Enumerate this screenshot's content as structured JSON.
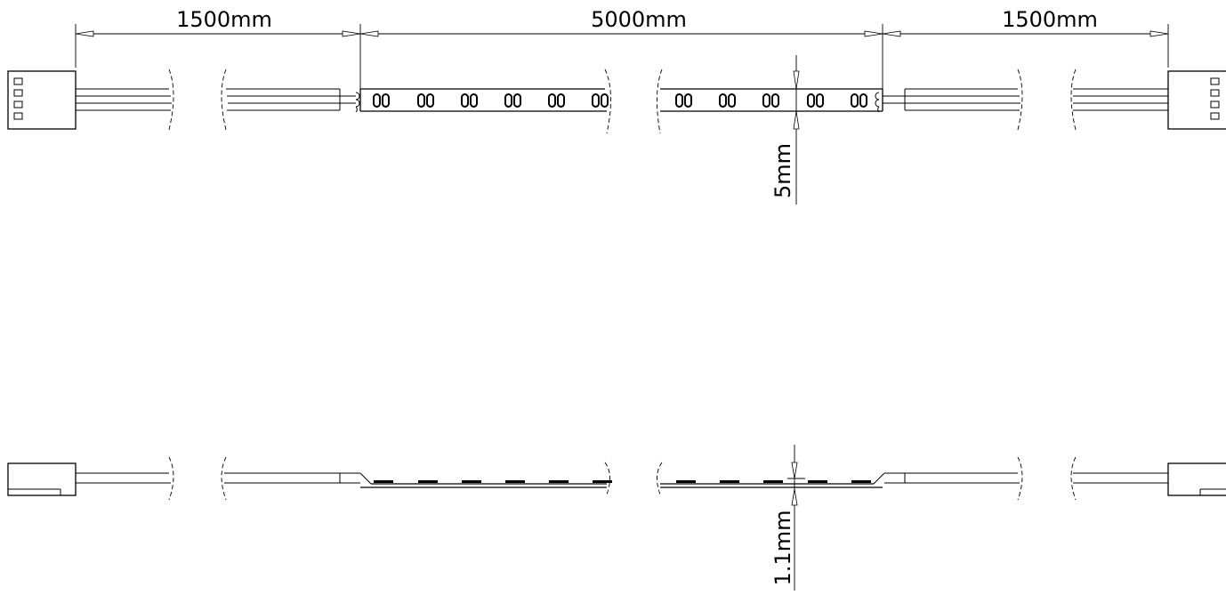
{
  "dimensions": {
    "lead_left_length": "1500mm",
    "strip_length": "5000mm",
    "lead_right_length": "1500mm",
    "strip_width": "5mm",
    "strip_thickness": "1.1mm"
  },
  "colors": {
    "line": "#000000",
    "background": "#ffffff"
  },
  "views": [
    "top-view",
    "side-view"
  ]
}
